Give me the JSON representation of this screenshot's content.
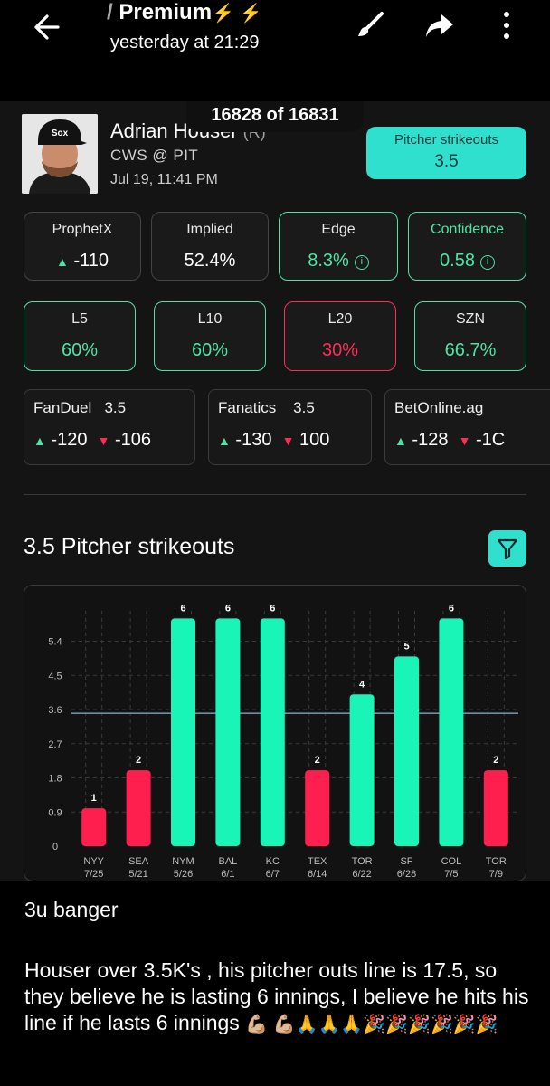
{
  "topbar": {
    "title": "Premium",
    "bolts": "⚡  ⚡",
    "timestamp": "yesterday at 21:29"
  },
  "counter": "16828 of 16831",
  "pitcher": {
    "name": "Adrian Houser",
    "hand": "(R)",
    "matchup": "CWS  @  PIT",
    "date": "Jul 19, 11:41 PM"
  },
  "prop": {
    "label": "Pitcher strikeouts",
    "line": "3.5"
  },
  "metrics": [
    {
      "label": "ProphetX",
      "value": "-110",
      "arrow": "▲"
    },
    {
      "label": "Implied",
      "value": "52.4%"
    },
    {
      "label": "Edge",
      "value": "8.3%"
    },
    {
      "label": "Confidence",
      "value": "0.58"
    }
  ],
  "hit_rates": [
    {
      "label": "L5",
      "value": "60%"
    },
    {
      "label": "L10",
      "value": "60%"
    },
    {
      "label": "L20",
      "value": "30%"
    },
    {
      "label": "SZN",
      "value": "66.7%"
    }
  ],
  "books": [
    {
      "name": "FanDuel",
      "line": "3.5",
      "over": "-120",
      "under": "-106"
    },
    {
      "name": "Fanatics",
      "line": "3.5",
      "over": "-130",
      "under": "100"
    },
    {
      "name": "BetOnline.ag",
      "line": "",
      "over": "-128",
      "under": "-1C"
    }
  ],
  "section_title": "3.5 Pitcher strikeouts",
  "chart_data": {
    "type": "bar",
    "title": "",
    "y_ticks": [
      "0",
      "0.9",
      "1.8",
      "2.7",
      "3.6",
      "4.5",
      "5.4"
    ],
    "ylim": [
      0,
      6.2
    ],
    "line_value": 3.5,
    "categories": [
      "NYY",
      "SEA",
      "NYM",
      "BAL",
      "KC",
      "TEX",
      "TOR",
      "SF",
      "COL",
      "TOR"
    ],
    "dates": [
      "7/25",
      "5/21",
      "5/26",
      "6/1",
      "6/7",
      "6/14",
      "6/22",
      "6/28",
      "7/5",
      "7/9"
    ],
    "values": [
      1,
      2,
      6,
      6,
      6,
      2,
      4,
      5,
      6,
      2
    ],
    "colors": {
      "over": "#19f5b7",
      "under": "#ff1f4f"
    }
  },
  "comment": {
    "line1": "3u banger",
    "body": "Houser over 3.5K's , his pitcher outs line is 17.5, so they believe he is lasting 6 innings, I believe he hits his line if he lasts 6 innings",
    "emojis": "💪🏼 💪🏼🙏🙏🙏🎉🎉🎉🎉🎉🎉"
  }
}
